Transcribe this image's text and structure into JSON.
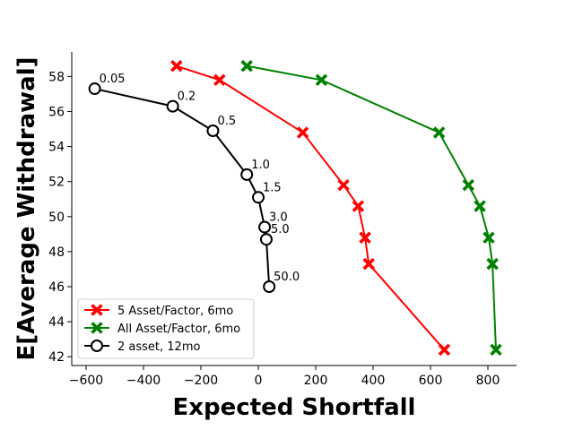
{
  "chart_data": {
    "type": "line",
    "xlabel": "Expected Shortfall",
    "ylabel": "E[Average Withdrawal]",
    "xlim": [
      -650,
      900
    ],
    "ylim": [
      41.5,
      59.4
    ],
    "xticks": [
      -600,
      -400,
      -200,
      0,
      200,
      400,
      600,
      800
    ],
    "yticks": [
      42,
      44,
      46,
      48,
      50,
      52,
      54,
      56,
      58
    ],
    "grid": false,
    "legend_position": "lower-left",
    "series": [
      {
        "name": "5 Asset/Factor, 6mo",
        "color": "#ff0000",
        "marker": "x-filled",
        "points": [
          {
            "x": -285,
            "y": 58.6
          },
          {
            "x": -135,
            "y": 57.8
          },
          {
            "x": 155,
            "y": 54.8
          },
          {
            "x": 297,
            "y": 51.8
          },
          {
            "x": 348,
            "y": 50.6
          },
          {
            "x": 372,
            "y": 48.8
          },
          {
            "x": 385,
            "y": 47.3
          },
          {
            "x": 648,
            "y": 42.4
          }
        ]
      },
      {
        "name": "All Asset/Factor, 6mo",
        "color": "#008000",
        "marker": "x-filled",
        "points": [
          {
            "x": -40,
            "y": 58.6
          },
          {
            "x": 220,
            "y": 57.8
          },
          {
            "x": 630,
            "y": 54.8
          },
          {
            "x": 732,
            "y": 51.8
          },
          {
            "x": 772,
            "y": 50.6
          },
          {
            "x": 803,
            "y": 48.8
          },
          {
            "x": 816,
            "y": 47.3
          },
          {
            "x": 828,
            "y": 42.4
          }
        ]
      },
      {
        "name": "2 asset, 12mo",
        "color": "#000000",
        "marker": "circle-open",
        "points": [
          {
            "x": -570,
            "y": 57.3,
            "label": "0.05"
          },
          {
            "x": -298,
            "y": 56.3,
            "label": "0.2"
          },
          {
            "x": -158,
            "y": 54.9,
            "label": "0.5"
          },
          {
            "x": -40,
            "y": 52.4,
            "label": "1.0"
          },
          {
            "x": 0,
            "y": 51.1,
            "label": "1.5"
          },
          {
            "x": 22,
            "y": 49.4,
            "label": "3.0"
          },
          {
            "x": 28,
            "y": 48.7,
            "label": "5.0"
          },
          {
            "x": 38,
            "y": 46.0,
            "label": "50.0"
          }
        ]
      }
    ]
  }
}
